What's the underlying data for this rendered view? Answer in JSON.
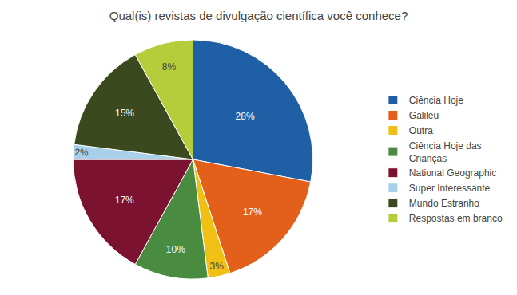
{
  "chart_data": {
    "type": "pie",
    "title": "Qual(is) revistas de divulgação científica você conhece?",
    "categories": [
      "Ciência Hoje",
      "Galileu",
      "Outra",
      "Ciência Hoje das\nCrianças",
      "National Geographic",
      "Super Interessante",
      "Mundo Estranho",
      "Respostas em branco"
    ],
    "values": [
      28,
      17,
      3,
      10,
      17,
      2,
      15,
      8
    ],
    "value_labels": [
      "28%",
      "17%",
      "3%",
      "10%",
      "17%",
      "2%",
      "15%",
      "8%"
    ],
    "colors": [
      "#1f5fa6",
      "#e2601a",
      "#f0c015",
      "#4a8c3f",
      "#7b1230",
      "#a8d0e8",
      "#3b4a1e",
      "#b5cc3b"
    ],
    "data_labels": true,
    "legend": "right"
  }
}
